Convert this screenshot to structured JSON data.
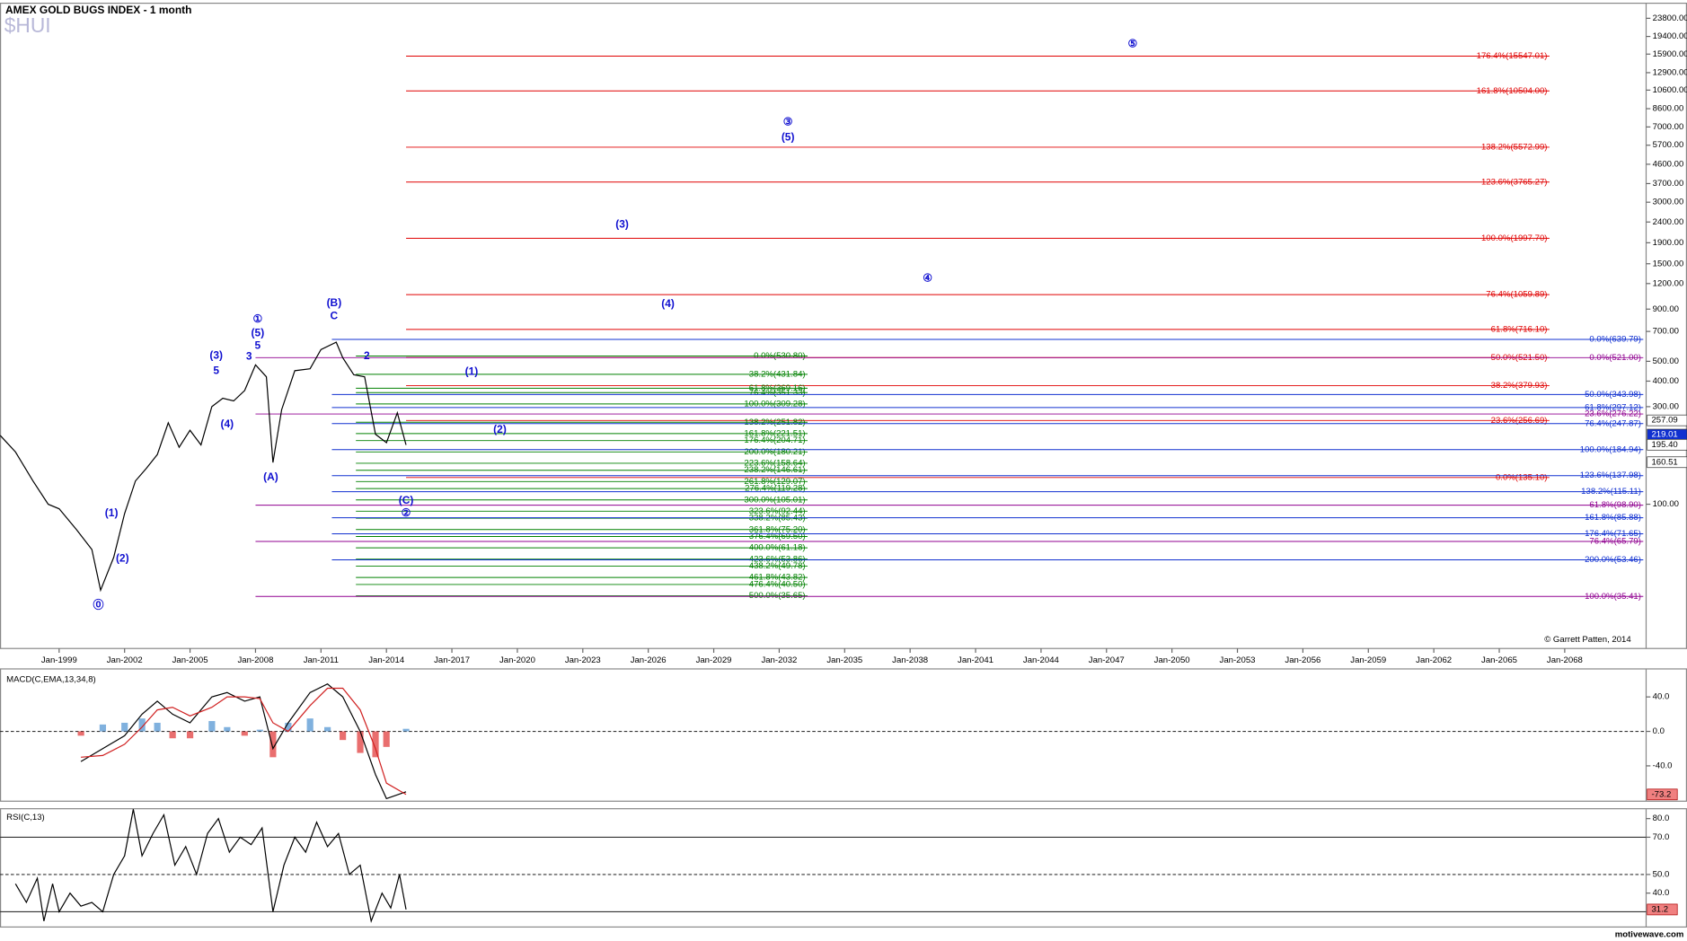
{
  "chart_data": [
    {
      "type": "line",
      "title": "AMEX GOLD BUGS INDEX - 1 month",
      "subtitle": "$HUI",
      "log_scale": true,
      "color": "#000000",
      "xlim": [
        1996.29,
        2071.73
      ],
      "xticks": [
        {
          "value": 1999,
          "label": "Jan-1999"
        },
        {
          "value": 2002,
          "label": "Jan-2002"
        },
        {
          "value": 2005,
          "label": "Jan-2005"
        },
        {
          "value": 2008,
          "label": "Jan-2008"
        },
        {
          "value": 2011,
          "label": "Jan-2011"
        },
        {
          "value": 2014,
          "label": "Jan-2014"
        },
        {
          "value": 2017,
          "label": "Jan-2017"
        },
        {
          "value": 2020,
          "label": "Jan-2020"
        },
        {
          "value": 2023,
          "label": "Jan-2023"
        },
        {
          "value": 2026,
          "label": "Jan-2026"
        },
        {
          "value": 2029,
          "label": "Jan-2029"
        },
        {
          "value": 2032,
          "label": "Jan-2032"
        },
        {
          "value": 2035,
          "label": "Jan-2035"
        },
        {
          "value": 2038,
          "label": "Jan-2038"
        },
        {
          "value": 2041,
          "label": "Jan-2041"
        },
        {
          "value": 2044,
          "label": "Jan-2044"
        },
        {
          "value": 2047,
          "label": "Jan-2047"
        },
        {
          "value": 2050,
          "label": "Jan-2050"
        },
        {
          "value": 2053,
          "label": "Jan-2053"
        },
        {
          "value": 2056,
          "label": "Jan-2056"
        },
        {
          "value": 2059,
          "label": "Jan-2059"
        },
        {
          "value": 2062,
          "label": "Jan-2062"
        },
        {
          "value": 2065,
          "label": "Jan-2065"
        },
        {
          "value": 2068,
          "label": "Jan-2068"
        }
      ],
      "ylim": [
        19.7,
        28200
      ],
      "yticks": [
        {
          "value": 23800,
          "label": "23800.00"
        },
        {
          "value": 19400,
          "label": "19400.00"
        },
        {
          "value": 15900,
          "label": "15900.00"
        },
        {
          "value": 12900,
          "label": "12900.00"
        },
        {
          "value": 10600,
          "label": "10600.00"
        },
        {
          "value": 8600,
          "label": "8600.00"
        },
        {
          "value": 7000,
          "label": "7000.00"
        },
        {
          "value": 5700,
          "label": "5700.00"
        },
        {
          "value": 4600,
          "label": "4600.00"
        },
        {
          "value": 3700,
          "label": "3700.00"
        },
        {
          "value": 3000,
          "label": "3000.00"
        },
        {
          "value": 2400,
          "label": "2400.00"
        },
        {
          "value": 1900,
          "label": "1900.00"
        },
        {
          "value": 1500,
          "label": "1500.00"
        },
        {
          "value": 1200,
          "label": "1200.00"
        },
        {
          "value": 900,
          "label": "900.00"
        },
        {
          "value": 700,
          "label": "700.00"
        },
        {
          "value": 500,
          "label": "500.00"
        },
        {
          "value": 400,
          "label": "400.00"
        },
        {
          "value": 300,
          "label": "300.00"
        },
        {
          "value": 100,
          "label": "100.00"
        }
      ],
      "x": [
        1996.3,
        1997.0,
        1997.8,
        1998.5,
        1999.0,
        1999.8,
        2000.5,
        2000.9,
        2001.5,
        2002.0,
        2002.5,
        2003.0,
        2003.5,
        2004.0,
        2004.5,
        2005.0,
        2005.5,
        2006.0,
        2006.5,
        2007.0,
        2007.5,
        2008.0,
        2008.5,
        2008.8,
        2009.2,
        2009.8,
        2010.5,
        2011.0,
        2011.7,
        2012.0,
        2012.5,
        2013.0,
        2013.5,
        2014.0,
        2014.5,
        2014.9
      ],
      "series": [
        {
          "color": "#000000",
          "values": [
            217,
            180,
            130,
            100,
            95,
            75,
            60,
            38,
            55,
            90,
            130,
            150,
            175,
            250,
            190,
            230,
            195,
            300,
            330,
            320,
            360,
            480,
            420,
            160,
            290,
            450,
            460,
            570,
            620,
            520,
            430,
            420,
            220,
            200,
            280,
            195
          ]
        }
      ],
      "fib_groups": [
        {
          "color": "#e00000",
          "start": 2014.9,
          "end": 2067.3,
          "levels": [
            {
              "value": 15547.01,
              "label": "176.4%(15547.01)"
            },
            {
              "value": 10504.0,
              "label": "161.8%(10504.00)"
            },
            {
              "value": 5572.99,
              "label": "138.2%(5572.99)"
            },
            {
              "value": 3765.27,
              "label": "123.6%(3765.27)"
            },
            {
              "value": 1997.7,
              "label": "100.0%(1997.70)"
            },
            {
              "value": 1059.89,
              "label": "76.4%(1059.89)"
            },
            {
              "value": 716.1,
              "label": "61.8%(716.10)"
            },
            {
              "value": 521.5,
              "label": "50.0%(521.50)"
            },
            {
              "value": 379.93,
              "label": "38.2%(379.93)"
            },
            {
              "value": 256.69,
              "label": "23.6%(256.69)"
            },
            {
              "value": 135.1,
              "label": "0.0%(135.10)"
            }
          ]
        },
        {
          "color": "#008000",
          "start": 2012.6,
          "end": 2033.3,
          "levels": [
            {
              "value": 530.8,
              "label": "0.0%(530.80)"
            },
            {
              "value": 431.84,
              "label": "38.2%(431.84)"
            },
            {
              "value": 369.16,
              "label": "61.8%(369.16)"
            },
            {
              "value": 351.33,
              "label": "76.4%(351.33)"
            },
            {
              "value": 309.28,
              "label": "100.0%(309.28)"
            },
            {
              "value": 251.82,
              "label": "138.2%(251.82)"
            },
            {
              "value": 221.51,
              "label": "161.8%(221.51)"
            },
            {
              "value": 204.71,
              "label": "176.4%(204.71)"
            },
            {
              "value": 180.21,
              "label": "200.0%(180.21)"
            },
            {
              "value": 158.64,
              "label": "223.6%(158.64)"
            },
            {
              "value": 146.61,
              "label": "238.2%(146.61)"
            },
            {
              "value": 129.07,
              "label": "261.8%(129.07)"
            },
            {
              "value": 119.28,
              "label": "276.4%(119.28)"
            },
            {
              "value": 105.01,
              "label": "300.0%(105.01)"
            },
            {
              "value": 92.44,
              "label": "323.6%(92.44)"
            },
            {
              "value": 85.43,
              "label": "338.2%(85.43)"
            },
            {
              "value": 75.2,
              "label": "361.8%(75.20)"
            },
            {
              "value": 69.5,
              "label": "376.4%(69.50)"
            },
            {
              "value": 61.18,
              "label": "400.0%(61.18)"
            },
            {
              "value": 53.86,
              "label": "423.6%(53.86)"
            },
            {
              "value": 49.78,
              "label": "438.2%(49.78)"
            },
            {
              "value": 43.82,
              "label": "461.8%(43.82)"
            },
            {
              "value": 40.5,
              "label": "476.4%(40.50)"
            },
            {
              "value": 35.65,
              "label": "500.0%(35.65)"
            }
          ]
        },
        {
          "color": "#1030d0",
          "start": 2011.5,
          "end": 2071.6,
          "levels": [
            {
              "value": 639.79,
              "label": "0.0%(639.79)"
            },
            {
              "value": 343.98,
              "label": "50.0%(343.98)"
            },
            {
              "value": 297.12,
              "label": "61.8%(297.12)"
            },
            {
              "value": 247.87,
              "label": "76.4%(247.87)"
            },
            {
              "value": 184.94,
              "label": "100.0%(184.94)"
            },
            {
              "value": 137.98,
              "label": "123.6%(137.98)"
            },
            {
              "value": 115.11,
              "label": "138.2%(115.11)"
            },
            {
              "value": 85.88,
              "label": "161.8%(85.88)"
            },
            {
              "value": 71.65,
              "label": "176.4%(71.65)"
            },
            {
              "value": 53.46,
              "label": "200.0%(53.46)"
            }
          ]
        },
        {
          "color": "#900090",
          "start": 2008.0,
          "end": 2071.6,
          "levels": [
            {
              "value": 521.0,
              "label": "0.0%(521.00)"
            },
            {
              "value": 276.22,
              "label": "23.6%(276.22)"
            },
            {
              "value": 98.9,
              "label": "61.8%(98.90)"
            },
            {
              "value": 65.79,
              "label": "76.4%(65.79)"
            },
            {
              "value": 35.41,
              "label": "100.0%(35.41)"
            }
          ]
        }
      ],
      "wave_labels": [
        {
          "x": 2048.2,
          "y": 17800,
          "label": "⑤"
        },
        {
          "x": 2032.4,
          "y": 7350,
          "label": "③"
        },
        {
          "x": 2032.4,
          "y": 6200,
          "label": "(5)"
        },
        {
          "x": 2024.8,
          "y": 2330,
          "label": "(3)"
        },
        {
          "x": 2038.8,
          "y": 1270,
          "label": "④"
        },
        {
          "x": 2026.9,
          "y": 950,
          "label": "(4)"
        },
        {
          "x": 2017.9,
          "y": 443,
          "label": "(1)"
        },
        {
          "x": 2019.2,
          "y": 231,
          "label": "(2)"
        },
        {
          "x": 2011.6,
          "y": 962,
          "label": "(B)"
        },
        {
          "x": 2011.6,
          "y": 830,
          "label": "C"
        },
        {
          "x": 2008.1,
          "y": 802,
          "label": "①"
        },
        {
          "x": 2008.1,
          "y": 685,
          "label": "(5)"
        },
        {
          "x": 2008.1,
          "y": 594,
          "label": "5"
        },
        {
          "x": 2006.2,
          "y": 532,
          "label": "(3)"
        },
        {
          "x": 2006.2,
          "y": 448,
          "label": "5"
        },
        {
          "x": 2007.7,
          "y": 525,
          "label": "3"
        },
        {
          "x": 2006.7,
          "y": 245,
          "label": "(4)"
        },
        {
          "x": 2008.7,
          "y": 135,
          "label": "(A)"
        },
        {
          "x": 2000.8,
          "y": 32,
          "label": "⓪"
        },
        {
          "x": 2001.4,
          "y": 90,
          "label": "(1)"
        },
        {
          "x": 2001.9,
          "y": 54,
          "label": "(2)"
        },
        {
          "x": 2014.9,
          "y": 104,
          "label": "(C)"
        },
        {
          "x": 2014.9,
          "y": 90,
          "label": "②"
        },
        {
          "x": 2013.1,
          "y": 530,
          "label": "2"
        }
      ],
      "price_tags": [
        257.09,
        219.01,
        {
          "value": 195.4,
          "label": "195.40"
        },
        160.51
      ],
      "annotation": "© Garrett Patten, 2014"
    },
    {
      "type": "line",
      "title": "MACD(C,EMA,13,34,8)",
      "ylim": [
        -81,
        72.5
      ],
      "yticks": [
        {
          "value": 40,
          "label": "40.0"
        },
        {
          "value": 0,
          "label": "0.0"
        },
        {
          "value": -40,
          "label": "-40.0"
        }
      ],
      "zero_line": 0,
      "tag": -73.2,
      "x": [
        2000.0,
        2001.0,
        2002.0,
        2002.8,
        2003.5,
        2004.2,
        2005.0,
        2006.0,
        2006.7,
        2007.5,
        2008.2,
        2008.8,
        2009.5,
        2010.5,
        2011.3,
        2012.0,
        2012.8,
        2013.5,
        2014.0,
        2014.9
      ],
      "series": [
        {
          "color": "#000000",
          "values": [
            -35,
            -20,
            -5,
            20,
            35,
            20,
            10,
            40,
            45,
            35,
            40,
            -20,
            10,
            45,
            55,
            40,
            0,
            -50,
            -78,
            -70
          ]
        },
        {
          "color": "#d02020",
          "values": [
            -30,
            -28,
            -15,
            5,
            25,
            28,
            18,
            28,
            40,
            40,
            38,
            10,
            0,
            30,
            50,
            50,
            25,
            -20,
            -60,
            -73.2
          ]
        }
      ],
      "bars": {
        "up_color": "#4a90d0",
        "down_color": "#e03030",
        "values": [
          -5,
          8,
          10,
          15,
          10,
          -8,
          -8,
          12,
          5,
          -5,
          2,
          -30,
          10,
          15,
          5,
          -10,
          -25,
          -30,
          -18,
          3
        ]
      }
    },
    {
      "type": "line",
      "title": "RSI(C,13)",
      "ylim": [
        21.8,
        85.3
      ],
      "yticks": [
        {
          "value": 80,
          "label": "80.0"
        },
        {
          "value": 70,
          "label": "70.0"
        },
        {
          "value": 50,
          "label": "50.0"
        },
        {
          "value": 40,
          "label": "40.0"
        }
      ],
      "hlines": [
        70,
        50,
        30
      ],
      "tag": 31.2,
      "x": [
        1997.0,
        1997.5,
        1998.0,
        1998.3,
        1998.7,
        1999.0,
        1999.5,
        2000.0,
        2000.5,
        2001.0,
        2001.5,
        2002.0,
        2002.4,
        2002.8,
        2003.3,
        2003.8,
        2004.3,
        2004.8,
        2005.3,
        2005.8,
        2006.3,
        2006.8,
        2007.3,
        2007.8,
        2008.3,
        2008.8,
        2009.3,
        2009.8,
        2010.3,
        2010.8,
        2011.3,
        2011.8,
        2012.3,
        2012.8,
        2013.3,
        2013.8,
        2014.2,
        2014.6,
        2014.9
      ],
      "series": [
        {
          "color": "#000000",
          "values": [
            45,
            35,
            48,
            25,
            45,
            30,
            40,
            33,
            35,
            30,
            50,
            60,
            85,
            60,
            72,
            82,
            55,
            65,
            50,
            72,
            80,
            62,
            70,
            66,
            75,
            30,
            55,
            70,
            62,
            78,
            65,
            72,
            50,
            55,
            25,
            40,
            32,
            50,
            31.2
          ]
        }
      ]
    }
  ],
  "footer": "motivewave.com"
}
